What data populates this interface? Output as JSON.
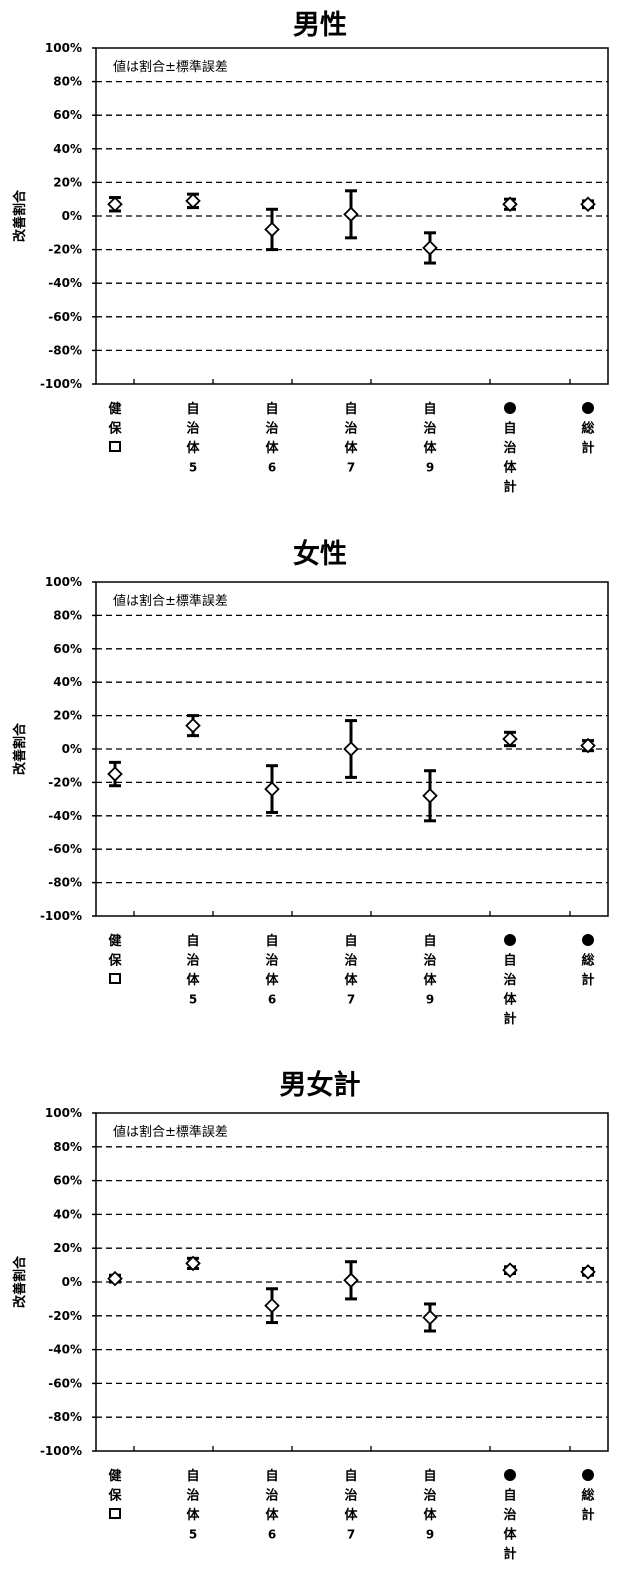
{
  "chart_data": [
    {
      "type": "scatter",
      "title": "男性",
      "ylabel": "改善割合",
      "note": "値は割合±標準誤差",
      "ylim": [
        -100,
        100
      ],
      "yticks": [
        "100%",
        "80%",
        "60%",
        "40%",
        "20%",
        "0%",
        "-20%",
        "-40%",
        "-60%",
        "-80%",
        "-100%"
      ],
      "categories": [
        [
          "健",
          "保",
          "□"
        ],
        [
          "自",
          "治",
          "体",
          "5"
        ],
        [
          "自",
          "治",
          "体",
          "6"
        ],
        [
          "自",
          "治",
          "体",
          "7"
        ],
        [
          "自",
          "治",
          "体",
          "9"
        ],
        [
          "●",
          "自",
          "治",
          "体",
          "計"
        ],
        [
          "●",
          "総",
          "計"
        ]
      ],
      "values": [
        7,
        9,
        -8,
        1,
        -19,
        7,
        7
      ],
      "errors": [
        4,
        4,
        12,
        14,
        9,
        3,
        2
      ],
      "grid": true
    },
    {
      "type": "scatter",
      "title": "女性",
      "ylabel": "改善割合",
      "note": "値は割合±標準誤差",
      "ylim": [
        -100,
        100
      ],
      "yticks": [
        "100%",
        "80%",
        "60%",
        "40%",
        "20%",
        "0%",
        "-20%",
        "-40%",
        "-60%",
        "-80%",
        "-100%"
      ],
      "categories": [
        [
          "健",
          "保",
          "□"
        ],
        [
          "自",
          "治",
          "体",
          "5"
        ],
        [
          "自",
          "治",
          "体",
          "6"
        ],
        [
          "自",
          "治",
          "体",
          "7"
        ],
        [
          "自",
          "治",
          "体",
          "9"
        ],
        [
          "●",
          "自",
          "治",
          "体",
          "計"
        ],
        [
          "●",
          "総",
          "計"
        ]
      ],
      "values": [
        -15,
        14,
        -24,
        0,
        -28,
        6,
        2
      ],
      "errors": [
        7,
        6,
        14,
        17,
        15,
        4,
        3
      ],
      "grid": true
    },
    {
      "type": "scatter",
      "title": "男女計",
      "ylabel": "改善割合",
      "note": "値は割合±標準誤差",
      "ylim": [
        -100,
        100
      ],
      "yticks": [
        "100%",
        "80%",
        "60%",
        "40%",
        "20%",
        "0%",
        "-20%",
        "-40%",
        "-60%",
        "-80%",
        "-100%"
      ],
      "categories": [
        [
          "健",
          "保",
          "□"
        ],
        [
          "自",
          "治",
          "体",
          "5"
        ],
        [
          "自",
          "治",
          "体",
          "6"
        ],
        [
          "自",
          "治",
          "体",
          "7"
        ],
        [
          "自",
          "治",
          "体",
          "9"
        ],
        [
          "●",
          "自",
          "治",
          "体",
          "計"
        ],
        [
          "●",
          "総",
          "計"
        ]
      ],
      "values": [
        2,
        11,
        -14,
        1,
        -21,
        7,
        6
      ],
      "errors": [
        2,
        3,
        10,
        11,
        8,
        2,
        2
      ],
      "grid": true
    }
  ]
}
